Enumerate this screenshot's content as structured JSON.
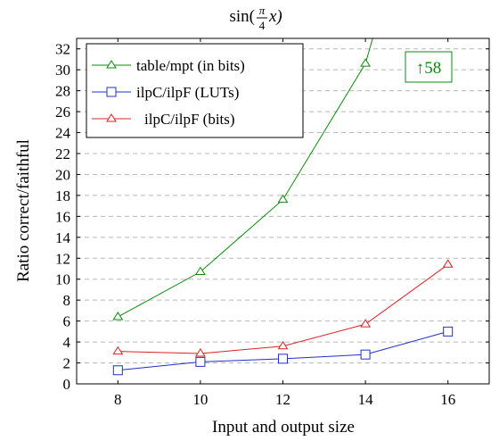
{
  "chart_data": {
    "type": "line",
    "title": "sin(π/4 x)",
    "title_parts": {
      "prefix": "sin(",
      "num": "π",
      "den": "4",
      "suffix": "x)"
    },
    "xlabel": "Input and output size",
    "ylabel": "Ratio correct/faithful",
    "x": [
      8,
      10,
      12,
      14,
      16
    ],
    "xticks": [
      8,
      10,
      12,
      14,
      16
    ],
    "xlim": [
      7,
      17
    ],
    "ylim": [
      0,
      33
    ],
    "yticks": [
      0,
      2,
      4,
      6,
      8,
      10,
      12,
      14,
      16,
      18,
      20,
      22,
      24,
      26,
      28,
      30,
      32
    ],
    "grid": "horizontal dashed",
    "legend_position": "top-left",
    "series": [
      {
        "name": "table/mpt (in bits)",
        "color": "#0a8a0a",
        "marker": "triangle",
        "x": [
          8,
          10,
          12,
          14,
          16
        ],
        "values": [
          6.4,
          10.7,
          17.6,
          30.6,
          58
        ]
      },
      {
        "name": "ilpC/ilpF (LUTs)",
        "color": "#1f2fd0",
        "marker": "square",
        "x": [
          8,
          10,
          12,
          14,
          16
        ],
        "values": [
          1.3,
          2.1,
          2.4,
          2.8,
          5.0
        ]
      },
      {
        "name": "ilpC/ilpF (bits)",
        "color": "#e02020",
        "marker": "triangle",
        "x": [
          8,
          10,
          12,
          14,
          16
        ],
        "values": [
          3.1,
          2.9,
          3.6,
          5.7,
          11.4
        ]
      }
    ],
    "annotation": {
      "text": "↑58",
      "color": "#0a8a0a"
    }
  }
}
